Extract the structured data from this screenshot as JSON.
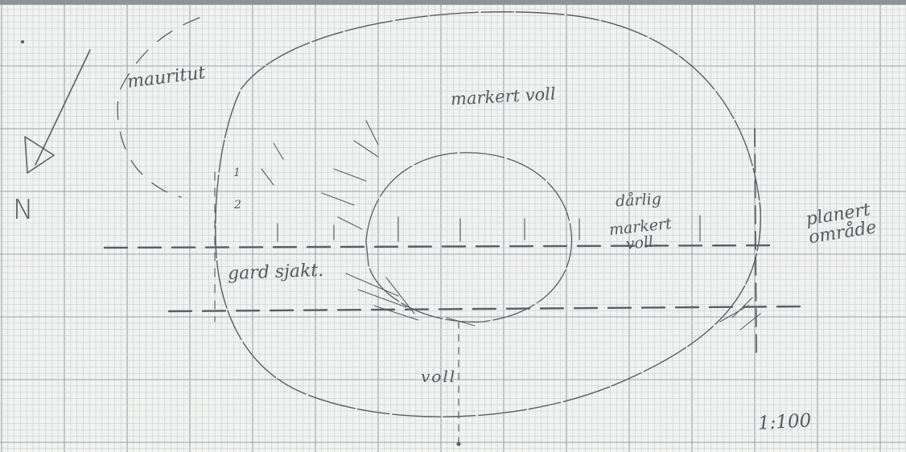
{
  "labels": {
    "mauritut": "mauritut",
    "markert_voll": "markert voll",
    "darlig": "dårlig",
    "markert_voll_line1": "markert",
    "markert_voll_line2": "voll.",
    "planert_line1": "planert",
    "planert_line2": "område",
    "gard_sjakt": "gard sjakt.",
    "voll": "voll",
    "scale": "1:100",
    "north": "N",
    "depth_1": "1",
    "depth_2": "2"
  },
  "colors": {
    "paper": "#f2f3f1",
    "grid_major": "#9aa0a8",
    "grid_minor": "#c7ccd2",
    "pencil": "#5a5e62"
  }
}
